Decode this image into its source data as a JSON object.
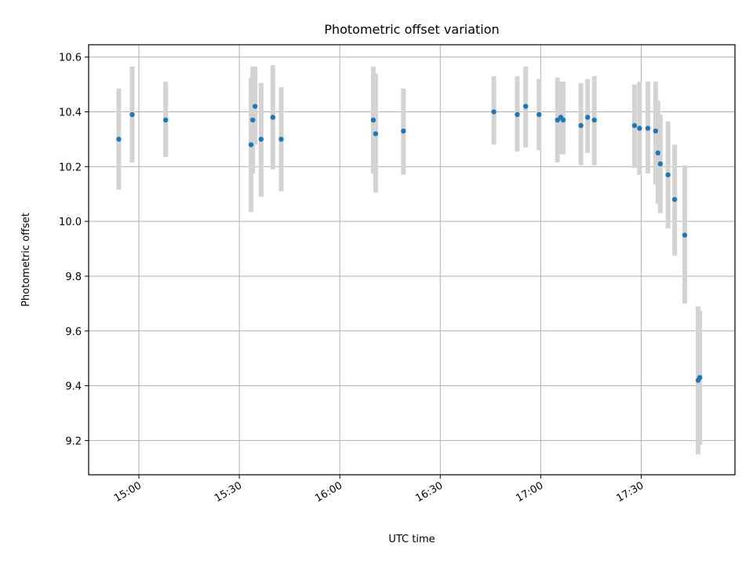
{
  "chart_data": {
    "type": "scatter",
    "title": "Photometric offset variation",
    "xlabel": "UTC time",
    "ylabel": "Photometric offset",
    "grid": true,
    "xlim": [
      "14:45",
      "17:58"
    ],
    "ylim": [
      9.075,
      10.645
    ],
    "x_ticks": [
      "15:00",
      "15:30",
      "16:00",
      "16:30",
      "17:00",
      "17:30"
    ],
    "y_ticks": [
      9.2,
      9.4,
      9.6,
      9.8,
      10.0,
      10.2,
      10.4,
      10.6
    ],
    "y_tick_labels": [
      "9.2",
      "9.4",
      "9.6",
      "9.8",
      "10.0",
      "10.2",
      "10.4",
      "10.6"
    ],
    "point_color": "#1f77b4",
    "errorbar_color": "#d3d3d3",
    "points": [
      {
        "t": "14:54",
        "y": 10.3,
        "lo": 10.115,
        "hi": 10.485
      },
      {
        "t": "14:58",
        "y": 10.39,
        "lo": 10.215,
        "hi": 10.565
      },
      {
        "t": "15:08",
        "y": 10.37,
        "lo": 10.235,
        "hi": 10.51
      },
      {
        "t": "15:33.5",
        "y": 10.28,
        "lo": 10.035,
        "hi": 10.525
      },
      {
        "t": "15:34",
        "y": 10.37,
        "lo": 10.175,
        "hi": 10.565
      },
      {
        "t": "15:34.7",
        "y": 10.42,
        "lo": 10.28,
        "hi": 10.565
      },
      {
        "t": "15:36.5",
        "y": 10.3,
        "lo": 10.09,
        "hi": 10.505
      },
      {
        "t": "15:40",
        "y": 10.38,
        "lo": 10.19,
        "hi": 10.57
      },
      {
        "t": "15:42.5",
        "y": 10.3,
        "lo": 10.11,
        "hi": 10.49
      },
      {
        "t": "16:10",
        "y": 10.37,
        "lo": 10.175,
        "hi": 10.565
      },
      {
        "t": "16:10.7",
        "y": 10.32,
        "lo": 10.105,
        "hi": 10.54
      },
      {
        "t": "16:19",
        "y": 10.33,
        "lo": 10.17,
        "hi": 10.485
      },
      {
        "t": "16:46",
        "y": 10.4,
        "lo": 10.28,
        "hi": 10.53
      },
      {
        "t": "16:53",
        "y": 10.39,
        "lo": 10.255,
        "hi": 10.53
      },
      {
        "t": "16:55.5",
        "y": 10.42,
        "lo": 10.27,
        "hi": 10.565
      },
      {
        "t": "16:59.5",
        "y": 10.39,
        "lo": 10.26,
        "hi": 10.52
      },
      {
        "t": "17:05",
        "y": 10.37,
        "lo": 10.215,
        "hi": 10.525
      },
      {
        "t": "17:06",
        "y": 10.38,
        "lo": 10.245,
        "hi": 10.51
      },
      {
        "t": "17:06.7",
        "y": 10.37,
        "lo": 10.245,
        "hi": 10.51
      },
      {
        "t": "17:12",
        "y": 10.35,
        "lo": 10.205,
        "hi": 10.505
      },
      {
        "t": "17:14",
        "y": 10.38,
        "lo": 10.25,
        "hi": 10.52
      },
      {
        "t": "17:16",
        "y": 10.37,
        "lo": 10.205,
        "hi": 10.53
      },
      {
        "t": "17:28",
        "y": 10.35,
        "lo": 10.195,
        "hi": 10.5
      },
      {
        "t": "17:29.5",
        "y": 10.34,
        "lo": 10.17,
        "hi": 10.51
      },
      {
        "t": "17:32",
        "y": 10.34,
        "lo": 10.175,
        "hi": 10.51
      },
      {
        "t": "17:34.3",
        "y": 10.33,
        "lo": 10.135,
        "hi": 10.51
      },
      {
        "t": "17:35",
        "y": 10.25,
        "lo": 10.065,
        "hi": 10.44
      },
      {
        "t": "17:35.7",
        "y": 10.21,
        "lo": 10.03,
        "hi": 10.39
      },
      {
        "t": "17:38",
        "y": 10.17,
        "lo": 9.975,
        "hi": 10.365
      },
      {
        "t": "17:40",
        "y": 10.08,
        "lo": 9.875,
        "hi": 10.28
      },
      {
        "t": "17:43",
        "y": 9.95,
        "lo": 9.7,
        "hi": 10.205
      },
      {
        "t": "17:47",
        "y": 9.42,
        "lo": 9.15,
        "hi": 9.69
      },
      {
        "t": "17:47.5",
        "y": 9.43,
        "lo": 9.185,
        "hi": 9.675
      }
    ]
  }
}
